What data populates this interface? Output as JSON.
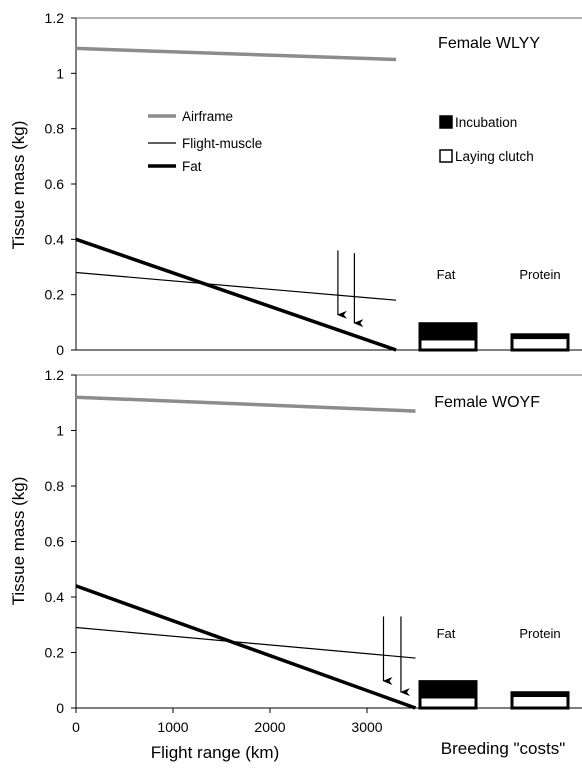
{
  "chart_data": [
    {
      "type": "line",
      "title": "Female WLYY",
      "ylabel": "Tissue mass (kg)",
      "xlabel": "",
      "xlim": [
        0,
        3600
      ],
      "ylim": [
        0,
        1.2
      ],
      "x_ticks": [],
      "y_ticks": [
        "0",
        "0.2",
        "0.4",
        "0.6",
        "0.8",
        "1",
        "1.2"
      ],
      "series": [
        {
          "name": "Airframe",
          "color": "#8c8c8c",
          "x": [
            0,
            3300
          ],
          "y": [
            1.09,
            1.05
          ]
        },
        {
          "name": "Flight-muscle",
          "color": "#000000",
          "x": [
            0,
            3300
          ],
          "y": [
            0.28,
            0.18
          ]
        },
        {
          "name": "Fat",
          "color": "#000000",
          "x": [
            0,
            3300
          ],
          "y": [
            0.4,
            0.0
          ]
        }
      ],
      "arrows": [
        {
          "x": 2700,
          "y_from": 0.36,
          "y_to": 0.12
        },
        {
          "x": 2870,
          "y_from": 0.35,
          "y_to": 0.09
        }
      ],
      "breeding": {
        "legend": [
          {
            "name": "Incubation",
            "color": "#000000"
          },
          {
            "name": "Laying clutch",
            "color": "#ffffff"
          }
        ],
        "categories": [
          "Fat",
          "Protein"
        ],
        "laying_clutch": [
          0.04,
          0.045
        ],
        "incubation": [
          0.055,
          0.01
        ]
      }
    },
    {
      "type": "line",
      "title": "Female WOYF",
      "ylabel": "Tissue mass (kg)",
      "xlabel": "Flight range (km)",
      "xlim": [
        0,
        3600
      ],
      "ylim": [
        0,
        1.2
      ],
      "x_ticks": [
        "0",
        "1000",
        "2000",
        "3000"
      ],
      "y_ticks": [
        "0",
        "0.2",
        "0.4",
        "0.6",
        "0.8",
        "1",
        "1.2"
      ],
      "series": [
        {
          "name": "Airframe",
          "color": "#8c8c8c",
          "x": [
            0,
            3500
          ],
          "y": [
            1.12,
            1.07
          ]
        },
        {
          "name": "Flight-muscle",
          "color": "#000000",
          "x": [
            0,
            3500
          ],
          "y": [
            0.29,
            0.18
          ]
        },
        {
          "name": "Fat",
          "color": "#000000",
          "x": [
            0,
            3500
          ],
          "y": [
            0.44,
            0.0
          ]
        }
      ],
      "arrows": [
        {
          "x": 3170,
          "y_from": 0.33,
          "y_to": 0.09
        },
        {
          "x": 3350,
          "y_from": 0.33,
          "y_to": 0.05
        }
      ],
      "breeding": {
        "categories": [
          "Fat",
          "Protein"
        ],
        "laying_clutch": [
          0.04,
          0.045
        ],
        "incubation": [
          0.055,
          0.01
        ]
      }
    }
  ],
  "breeding_axis_label": "Breeding \"costs\""
}
